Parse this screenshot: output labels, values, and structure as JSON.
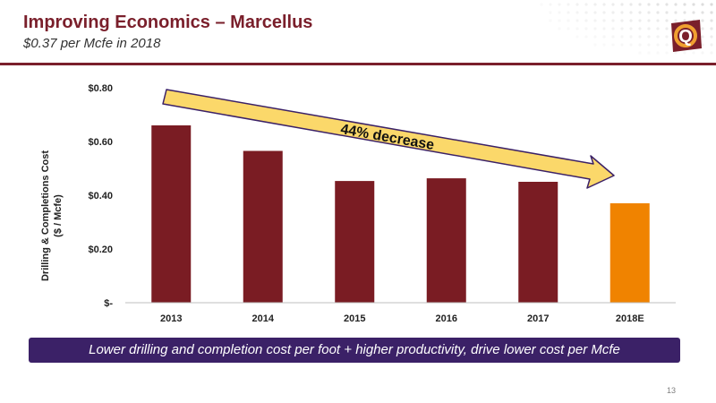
{
  "header": {
    "title": "Improving Economics – Marcellus",
    "subtitle": "$0.37 per Mcfe in 2018"
  },
  "logo": {
    "letter": "Q"
  },
  "colors": {
    "brand": "#7a1f2b",
    "bar_actual": "#7a1c23",
    "bar_estimate": "#f08300",
    "caption_bg": "#3b2167",
    "arrow_fill": "#fbd86a",
    "arrow_stroke": "#3b2167"
  },
  "chart_data": {
    "type": "bar",
    "categories": [
      "2013",
      "2014",
      "2015",
      "2016",
      "2017",
      "2018E"
    ],
    "values": [
      0.66,
      0.565,
      0.453,
      0.463,
      0.45,
      0.37
    ],
    "estimate_index": 5,
    "ylabel_line1": "Drilling & Completions Cost",
    "ylabel_line2": "($ / Mcfe)",
    "ylim": [
      0,
      0.8
    ],
    "yticks": [
      0,
      0.2,
      0.4,
      0.6,
      0.8
    ],
    "ytick_labels": [
      "$-",
      "$0.20",
      "$0.40",
      "$0.60",
      "$0.80"
    ],
    "annotation": "44% decrease",
    "grid": false,
    "legend": "none"
  },
  "caption": "Lower drilling and completion cost per foot + higher productivity, drive lower cost per Mcfe",
  "page_number": "13"
}
